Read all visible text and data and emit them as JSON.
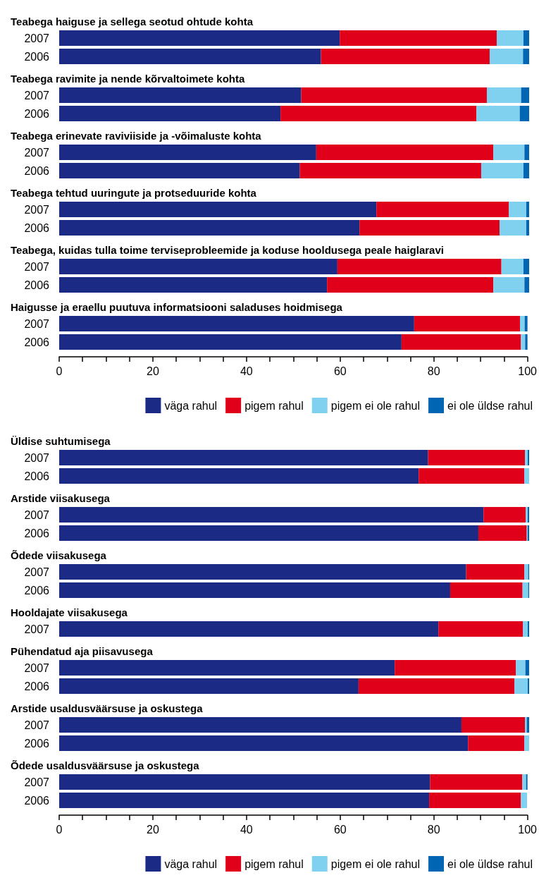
{
  "chart_data": [
    {
      "type": "bar",
      "orientation": "horizontal",
      "stacked": true,
      "title": "Teabega haiguse ja sellega seotud ohtude kohta",
      "categories": [
        "2007",
        "2006"
      ],
      "xlim": [
        0,
        100
      ],
      "xticks": [
        0,
        20,
        40,
        60,
        80,
        100
      ],
      "tick_labels": "y",
      "legend": false,
      "series": [
        {
          "color": "#1b2a84",
          "values": [
            59.7,
            55.7
          ]
        },
        {
          "color": "#e10019",
          "values": [
            33.4,
            35.9
          ]
        },
        {
          "color": "#80d0f0",
          "values": [
            5.7,
            7.1
          ]
        },
        {
          "color": "#0066b3",
          "values": [
            1.2,
            1.3
          ]
        }
      ]
    },
    {
      "type": "bar",
      "orientation": "horizontal",
      "stacked": true,
      "title": "Teabega ravimite ja nende kõrvaltoimete kohta",
      "categories": [
        "2007",
        "2006"
      ],
      "xlim": [
        0,
        100
      ],
      "xticks": [
        0,
        20,
        40,
        60,
        80,
        100
      ],
      "tick_labels": "y",
      "legend": false,
      "series": [
        {
          "color": "#1b2a84",
          "values": [
            51.5,
            47.1
          ]
        },
        {
          "color": "#e10019",
          "values": [
            39.5,
            41.7
          ]
        },
        {
          "color": "#80d0f0",
          "values": [
            7.3,
            9.2
          ]
        },
        {
          "color": "#0066b3",
          "values": [
            1.7,
            2.0
          ]
        }
      ]
    },
    {
      "type": "bar",
      "orientation": "horizontal",
      "stacked": true,
      "title": "Teabega erinevate raviviiside ja -võimaluste kohta",
      "categories": [
        "2007",
        "2006"
      ],
      "xlim": [
        0,
        100
      ],
      "xticks": [
        0,
        20,
        40,
        60,
        80,
        100
      ],
      "tick_labels": "y",
      "legend": false,
      "series": [
        {
          "color": "#1b2a84",
          "values": [
            54.7,
            51.2
          ]
        },
        {
          "color": "#e10019",
          "values": [
            37.7,
            38.6
          ]
        },
        {
          "color": "#80d0f0",
          "values": [
            6.6,
            9.0
          ]
        },
        {
          "color": "#0066b3",
          "values": [
            1.0,
            1.2
          ]
        }
      ]
    },
    {
      "type": "bar",
      "orientation": "horizontal",
      "stacked": true,
      "title": "Teabega tehtud uuringute ja protseduuride kohta",
      "categories": [
        "2007",
        "2006"
      ],
      "xlim": [
        0,
        100
      ],
      "xticks": [
        0,
        20,
        40,
        60,
        80,
        100
      ],
      "tick_labels": "y",
      "legend": false,
      "series": [
        {
          "color": "#1b2a84",
          "values": [
            67.5,
            63.9
          ]
        },
        {
          "color": "#e10019",
          "values": [
            28.2,
            29.8
          ]
        },
        {
          "color": "#80d0f0",
          "values": [
            3.7,
            5.7
          ]
        },
        {
          "color": "#0066b3",
          "values": [
            0.6,
            0.6
          ]
        }
      ]
    },
    {
      "type": "bar",
      "orientation": "horizontal",
      "stacked": true,
      "title": "Teabega, kuidas tulla toime terviseprobleemide ja koduse hooldusega peale haiglaravi",
      "categories": [
        "2007",
        "2006"
      ],
      "xlim": [
        0,
        100
      ],
      "xticks": [
        0,
        20,
        40,
        60,
        80,
        100
      ],
      "tick_labels": "y",
      "legend": false,
      "series": [
        {
          "color": "#1b2a84",
          "values": [
            59.2,
            57.0
          ]
        },
        {
          "color": "#e10019",
          "values": [
            34.9,
            35.4
          ]
        },
        {
          "color": "#80d0f0",
          "values": [
            4.7,
            6.6
          ]
        },
        {
          "color": "#0066b3",
          "values": [
            1.2,
            1.0
          ]
        }
      ]
    },
    {
      "type": "bar",
      "orientation": "horizontal",
      "stacked": true,
      "title": "Haigusse ja eraellu puutuva informatsiooni saladuses hoidmisega",
      "categories": [
        "2007",
        "2006"
      ],
      "xlim": [
        0,
        100
      ],
      "xticks": [
        0,
        {
          "value": 5,
          "label": null
        },
        {
          "value": 10,
          "label": null
        },
        {
          "value": 15,
          "label": null
        },
        20,
        {
          "value": 25,
          "label": null
        },
        {
          "value": 30,
          "label": null
        },
        {
          "value": 35,
          "label": null
        },
        40,
        {
          "value": 45,
          "label": null
        },
        {
          "value": 50,
          "label": null
        },
        {
          "value": 55,
          "label": null
        },
        60,
        {
          "value": 65,
          "label": null
        },
        {
          "value": 70,
          "label": null
        },
        {
          "value": 75,
          "label": null
        },
        80,
        {
          "value": 85,
          "label": null
        },
        {
          "value": 90,
          "label": null
        },
        {
          "value": 95,
          "label": null
        },
        100
      ],
      "legend": "bottom right",
      "series": [
        {
          "name": "väga rahul",
          "color": "#1b2a84",
          "values": [
            75.8,
            73.1
          ]
        },
        {
          "name": "pigem rahul",
          "color": "#e10019",
          "values": [
            22.6,
            25.5
          ]
        },
        {
          "name": "pigem ei ole rahul",
          "color": "#80d0f0",
          "values": [
            1.0,
            0.9
          ]
        },
        {
          "name": "ei ole üldse rahul",
          "color": "#0066b3",
          "values": [
            0.6,
            0.5
          ]
        }
      ]
    },
    {
      "type": "bar",
      "orientation": "horizontal",
      "stacked": true,
      "title": "Üldise suhtumisega",
      "categories": [
        "2007",
        "2006"
      ],
      "xlim": [
        0,
        100
      ],
      "xticks": [
        0,
        20,
        40,
        60,
        80,
        100
      ],
      "tick_labels": "y",
      "legend": false,
      "series": [
        {
          "color": "#1b2a84",
          "values": [
            78.5,
            76.5
          ]
        },
        {
          "color": "#e10019",
          "values": [
            20.6,
            22.5
          ]
        },
        {
          "color": "#80d0f0",
          "values": [
            0.6,
            1.0
          ]
        },
        {
          "color": "#0066b3",
          "values": [
            0.3,
            0
          ]
        }
      ]
    },
    {
      "type": "bar",
      "orientation": "horizontal",
      "stacked": true,
      "title": "Arstide viisakusega",
      "categories": [
        "2007",
        "2006"
      ],
      "xlim": [
        0,
        100
      ],
      "xticks": [
        0,
        20,
        40,
        60,
        80,
        100
      ],
      "tick_labels": "y",
      "legend": false,
      "series": [
        {
          "color": "#1b2a84",
          "values": [
            90.3,
            89.2
          ]
        },
        {
          "color": "#e10019",
          "values": [
            9.0,
            10.3
          ]
        },
        {
          "color": "#80d0f0",
          "values": [
            0.4,
            0.2
          ]
        },
        {
          "color": "#0066b3",
          "values": [
            0.3,
            0.3
          ]
        }
      ]
    },
    {
      "type": "bar",
      "orientation": "horizontal",
      "stacked": true,
      "title": "Õdede viisakusega",
      "categories": [
        "2007",
        "2006"
      ],
      "xlim": [
        0,
        100
      ],
      "xticks": [
        0,
        20,
        40,
        60,
        80,
        100
      ],
      "tick_labels": "y",
      "legend": false,
      "series": [
        {
          "color": "#1b2a84",
          "values": [
            86.6,
            83.2
          ]
        },
        {
          "color": "#e10019",
          "values": [
            12.4,
            15.4
          ]
        },
        {
          "color": "#80d0f0",
          "values": [
            0.8,
            1.2
          ]
        },
        {
          "color": "#0066b3",
          "values": [
            0.2,
            0.2
          ]
        }
      ]
    },
    {
      "type": "bar",
      "orientation": "horizontal",
      "stacked": true,
      "title": "Hooldajate viisakusega",
      "categories": [
        "2007"
      ],
      "xlim": [
        0,
        100
      ],
      "xticks": [
        0,
        20,
        40,
        60,
        80,
        100
      ],
      "tick_labels": "y",
      "legend": false,
      "series": [
        {
          "color": "#1b2a84",
          "values": [
            80.7
          ]
        },
        {
          "color": "#e10019",
          "values": [
            18.0
          ]
        },
        {
          "color": "#80d0f0",
          "values": [
            1.0
          ]
        },
        {
          "color": "#0066b3",
          "values": [
            0.3
          ]
        }
      ]
    },
    {
      "type": "bar",
      "orientation": "horizontal",
      "stacked": true,
      "title": "Pühendatud aja piisavusega",
      "categories": [
        "2007",
        "2006"
      ],
      "xlim": [
        0,
        100
      ],
      "xticks": [
        0,
        20,
        40,
        60,
        80,
        100
      ],
      "tick_labels": "y",
      "legend": false,
      "series": [
        {
          "color": "#1b2a84",
          "values": [
            71.4,
            63.7
          ]
        },
        {
          "color": "#e10019",
          "values": [
            25.8,
            33.2
          ]
        },
        {
          "color": "#80d0f0",
          "values": [
            2.0,
            2.8
          ]
        },
        {
          "color": "#0066b3",
          "values": [
            0.8,
            0.3
          ]
        }
      ]
    },
    {
      "type": "bar",
      "orientation": "horizontal",
      "stacked": true,
      "title": "Arstide usaldusväärsuse ja oskustega",
      "categories": [
        "2007",
        "2006"
      ],
      "xlim": [
        0,
        100
      ],
      "xticks": [
        0,
        20,
        40,
        60,
        80,
        100
      ],
      "tick_labels": "y",
      "legend": false,
      "series": [
        {
          "color": "#1b2a84",
          "values": [
            85.6,
            87.0
          ]
        },
        {
          "color": "#e10019",
          "values": [
            13.5,
            12.0
          ]
        },
        {
          "color": "#80d0f0",
          "values": [
            0.4,
            1.0
          ]
        },
        {
          "color": "#0066b3",
          "values": [
            0.5,
            0
          ]
        }
      ]
    },
    {
      "type": "bar",
      "orientation": "horizontal",
      "stacked": true,
      "title": "Õdede usaldusväärsuse ja oskustega",
      "categories": [
        "2007",
        "2006"
      ],
      "xlim": [
        0,
        100
      ],
      "xticks": [
        0,
        {
          "value": 5,
          "label": null
        },
        {
          "value": 10,
          "label": null
        },
        {
          "value": 15,
          "label": null
        },
        20,
        {
          "value": 25,
          "label": null
        },
        {
          "value": 30,
          "label": null
        },
        {
          "value": 35,
          "label": null
        },
        40,
        {
          "value": 45,
          "label": null
        },
        {
          "value": 50,
          "label": null
        },
        {
          "value": 55,
          "label": null
        },
        60,
        {
          "value": 65,
          "label": null
        },
        {
          "value": 70,
          "label": null
        },
        {
          "value": 75,
          "label": null
        },
        80,
        {
          "value": 85,
          "label": null
        },
        {
          "value": 90,
          "label": null
        },
        {
          "value": 95,
          "label": null
        },
        100
      ],
      "legend": "bottom right",
      "series": [
        {
          "name": "väga rahul",
          "color": "#1b2a84",
          "values": [
            79.2,
            79.0
          ]
        },
        {
          "name": "pigem rahul",
          "color": "#e10019",
          "values": [
            19.7,
            19.6
          ]
        },
        {
          "name": "pigem ei ole rahul",
          "color": "#80d0f0",
          "values": [
            0.8,
            1.3
          ]
        },
        {
          "name": "ei ole üldse rahul",
          "color": "#0066b3",
          "values": [
            0.3,
            null
          ]
        }
      ]
    }
  ]
}
